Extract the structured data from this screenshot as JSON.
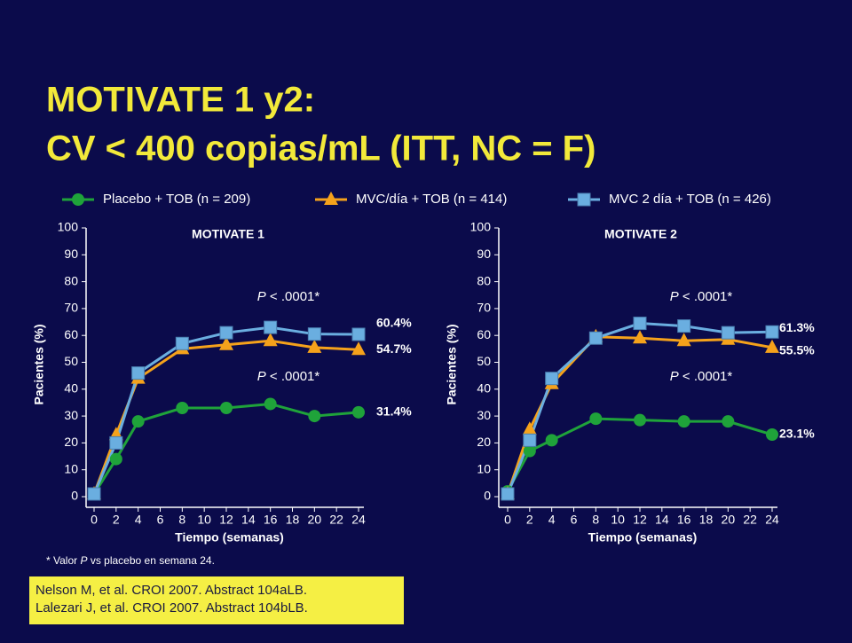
{
  "title": [
    "MOTIVATE 1 y2:",
    "CV < 400 copias/mL (ITT, NC = F)"
  ],
  "footnote": {
    "prefix": "* Valor ",
    "italic": "P",
    "text": " vs placebo en semana 24."
  },
  "citations": [
    "Nelson M, et al. CROI 2007. Abstract 104aLB.",
    "Lalezari J, et al. CROI 2007. Abstract 104bLB."
  ],
  "chart_data": [
    {
      "type": "line",
      "title": "MOTIVATE 1",
      "xlabel": "Tiempo (semanas)",
      "ylabel": "Pacientes (%)",
      "x": [
        0,
        2,
        4,
        8,
        12,
        16,
        20,
        24
      ],
      "xlim": [
        0,
        24
      ],
      "xticks": [
        0,
        2,
        4,
        6,
        8,
        10,
        12,
        14,
        16,
        18,
        20,
        22,
        24
      ],
      "ylim": [
        0,
        100
      ],
      "yticks": [
        0,
        10,
        20,
        30,
        40,
        50,
        60,
        70,
        80,
        90,
        100
      ],
      "annotations": [
        {
          "italic": "P",
          "text": " < .0001*"
        },
        {
          "italic": "P",
          "text": " < .0001*"
        }
      ],
      "series": [
        {
          "name": "Placebo + TOB (n = 209)",
          "color": "#1fa33a",
          "marker": "circle",
          "values": [
            1,
            14,
            28,
            33,
            33,
            34.5,
            30,
            31.4
          ],
          "value_labels": [
            null,
            null,
            null,
            null,
            null,
            null,
            null,
            "31.4%"
          ]
        },
        {
          "name": "MVC/día + TOB (n = 414)",
          "color": "#f5a21b",
          "marker": "triangle",
          "values": [
            1,
            23,
            44,
            55,
            56.5,
            58,
            55.5,
            54.7
          ],
          "value_labels": [
            null,
            null,
            null,
            null,
            null,
            null,
            null,
            "54.7%"
          ]
        },
        {
          "name": "MVC 2 día + TOB (n = 426)",
          "color": "#6aaee0",
          "marker": "square",
          "values": [
            1,
            20,
            46,
            57,
            61,
            63,
            60.5,
            60.4
          ],
          "value_labels": [
            null,
            null,
            null,
            null,
            null,
            null,
            null,
            "60.4%"
          ]
        }
      ]
    },
    {
      "type": "line",
      "title": "MOTIVATE 2",
      "xlabel": "Tiempo (semanas)",
      "ylabel": "Pacientes (%)",
      "x": [
        0,
        2,
        4,
        8,
        12,
        16,
        20,
        24
      ],
      "xlim": [
        0,
        24
      ],
      "xticks": [
        0,
        2,
        4,
        6,
        8,
        10,
        12,
        14,
        16,
        18,
        20,
        22,
        24
      ],
      "ylim": [
        0,
        100
      ],
      "yticks": [
        0,
        10,
        20,
        30,
        40,
        50,
        60,
        70,
        80,
        90,
        100
      ],
      "annotations": [
        {
          "italic": "P",
          "text": " < .0001*"
        },
        {
          "italic": "P",
          "text": " < .0001*"
        }
      ],
      "series": [
        {
          "values": [
            2,
            17,
            21,
            29,
            28.5,
            28,
            28,
            23.1
          ],
          "value_labels": [
            null,
            null,
            null,
            null,
            null,
            null,
            null,
            "23.1%"
          ]
        },
        {
          "values": [
            1,
            25,
            42,
            59.5,
            59,
            58,
            58.5,
            55.5
          ],
          "value_labels": [
            null,
            null,
            null,
            null,
            null,
            null,
            null,
            "55.5%"
          ]
        },
        {
          "values": [
            1,
            21,
            44,
            59,
            64.5,
            63.5,
            61,
            61.3
          ],
          "value_labels": [
            null,
            null,
            null,
            null,
            null,
            null,
            null,
            "61.3%"
          ]
        }
      ]
    }
  ]
}
